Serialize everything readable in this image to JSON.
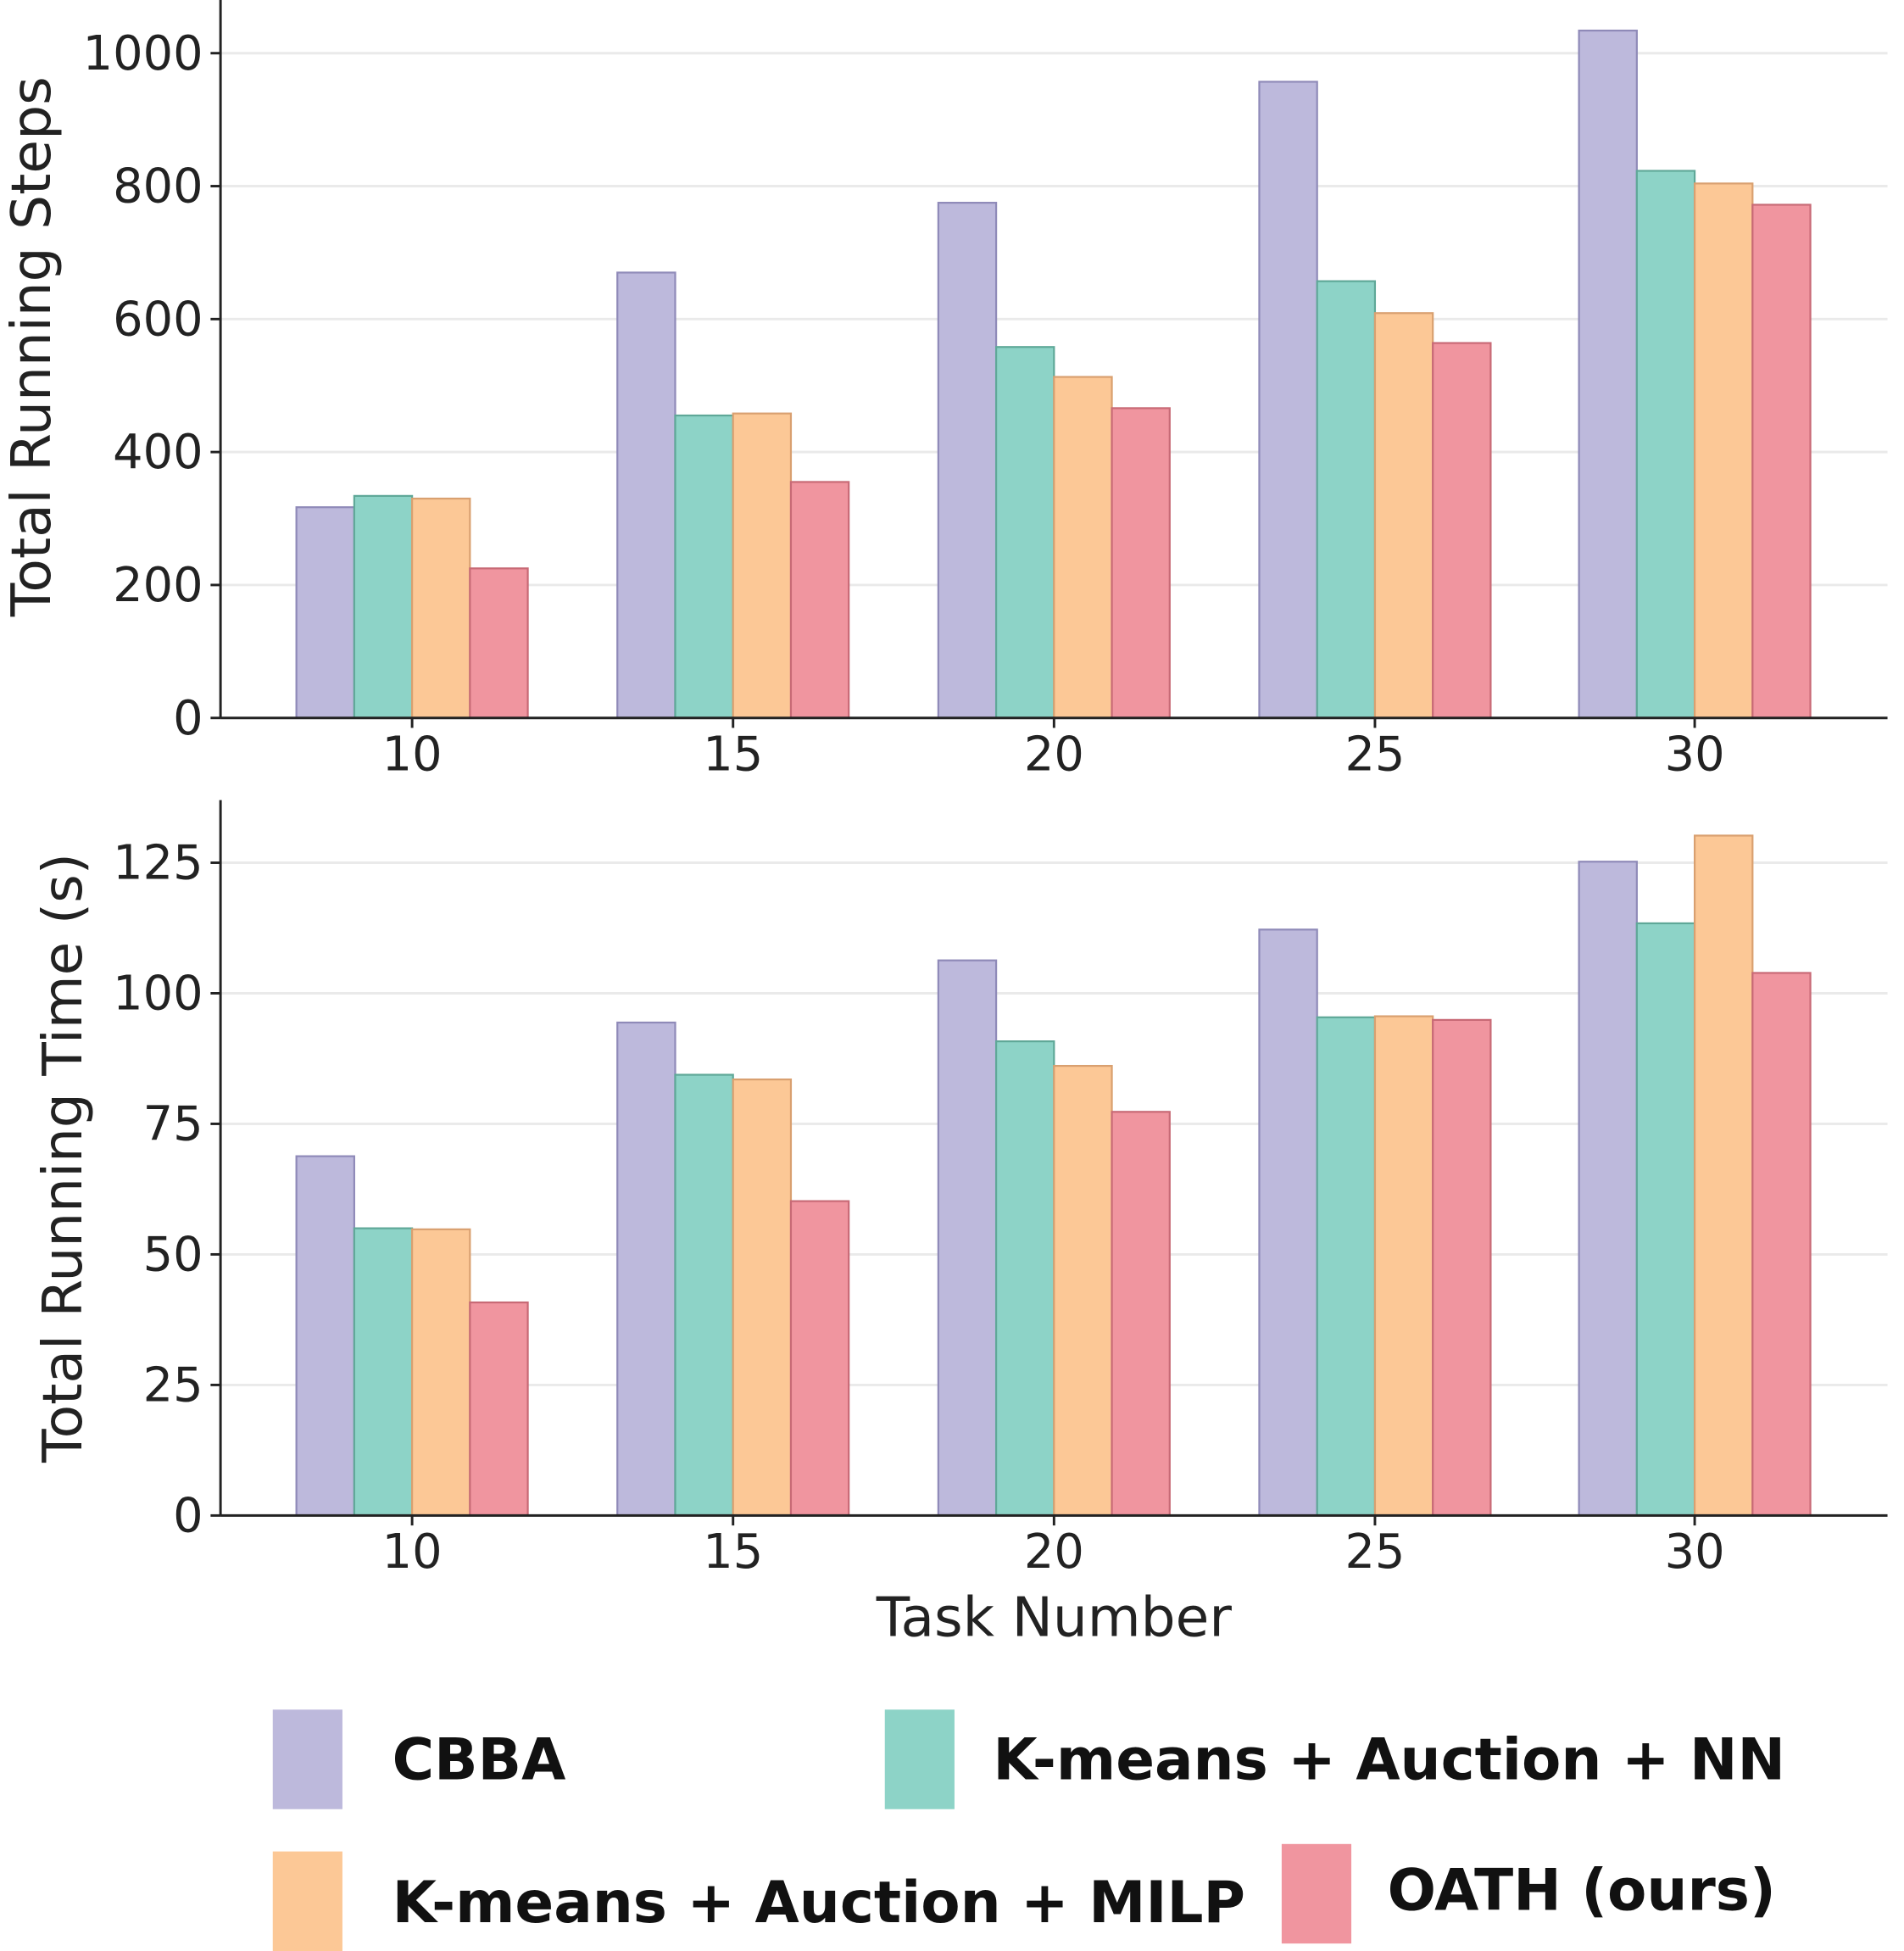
{
  "chart_data": [
    {
      "type": "bar",
      "title": "",
      "xlabel": "",
      "ylabel": "Total Running Steps",
      "categories": [
        "10",
        "15",
        "20",
        "25",
        "30"
      ],
      "ylim": [
        0,
        1080
      ],
      "yticks": [
        "0",
        "200",
        "400",
        "600",
        "800",
        "1000"
      ],
      "grid": true,
      "series": [
        {
          "name": "CBBA",
          "values": [
            317,
            670,
            775,
            957,
            1034
          ]
        },
        {
          "name": "K-means + Auction + NN",
          "values": [
            334,
            455,
            558,
            657,
            823
          ]
        },
        {
          "name": "K-means + Auction + MILP",
          "values": [
            330,
            458,
            513,
            609,
            804
          ]
        },
        {
          "name": "OATH (ours)",
          "values": [
            225,
            355,
            466,
            564,
            772
          ]
        }
      ]
    },
    {
      "type": "bar",
      "title": "",
      "xlabel": "Task Number",
      "ylabel": "Total Running Time (s)",
      "categories": [
        "10",
        "15",
        "20",
        "25",
        "30"
      ],
      "ylim": [
        0,
        137
      ],
      "yticks": [
        "0",
        "25",
        "50",
        "75",
        "100",
        "125"
      ],
      "grid": true,
      "series": [
        {
          "name": "CBBA",
          "values": [
            68.8,
            94.4,
            106.3,
            112.2,
            125.2
          ]
        },
        {
          "name": "K-means + Auction + NN",
          "values": [
            55.0,
            84.4,
            90.8,
            95.4,
            113.4
          ]
        },
        {
          "name": "K-means + Auction + MILP",
          "values": [
            54.8,
            83.5,
            86.1,
            95.6,
            130.2
          ]
        },
        {
          "name": "OATH (ours)",
          "values": [
            40.8,
            60.2,
            77.3,
            94.9,
            103.9
          ]
        }
      ]
    }
  ],
  "legend": {
    "placement": "bottom",
    "items": [
      "CBBA",
      "K-means + Auction + NN",
      "K-means + Auction + MILP",
      "OATH (ours)"
    ]
  },
  "colors": {
    "fill": [
      "#bdb9dc",
      "#8dd3c7",
      "#fcc896",
      "#f0959f"
    ],
    "edge": [
      "#8f8ab8",
      "#5fa898",
      "#d9a070",
      "#c86a76"
    ]
  }
}
